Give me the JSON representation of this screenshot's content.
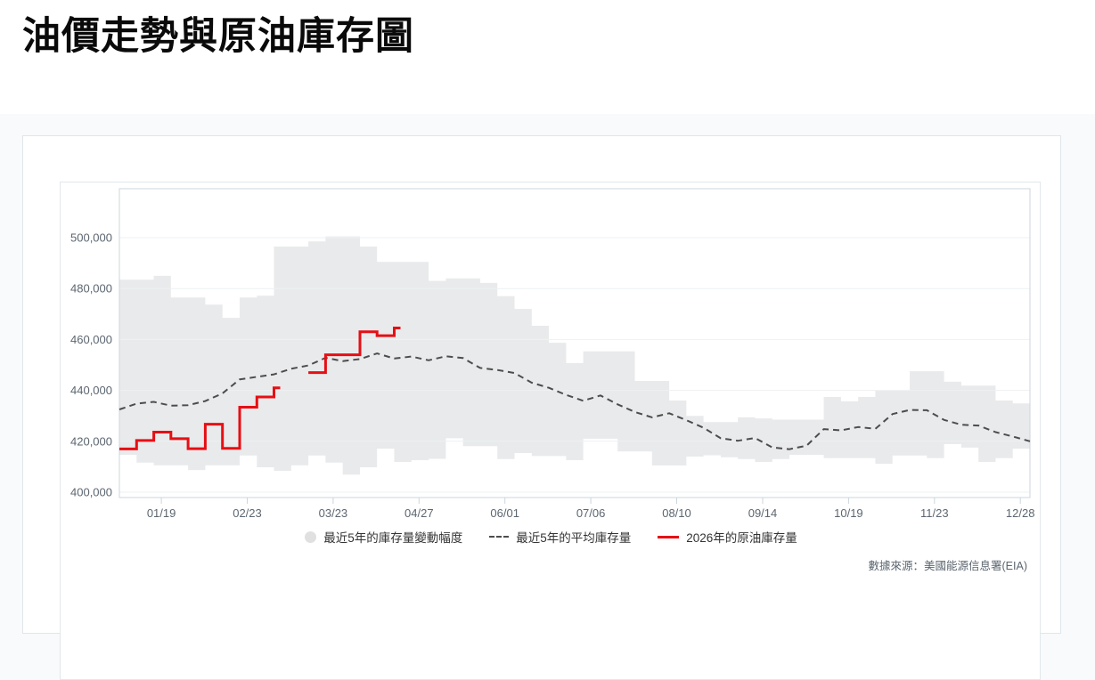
{
  "page": {
    "title": "油價走勢與原油庫存圖",
    "source_note": "數據來源：美國能源信息署(EIA)"
  },
  "legend": [
    {
      "marker": "area",
      "label": "最近5年的庫存量變動幅度",
      "color": "#e0e0e0"
    },
    {
      "marker": "dashed",
      "label": "最近5年的平均庫存量",
      "color": "#4d4d4d"
    },
    {
      "marker": "line",
      "label": "2026年的原油庫存量",
      "color": "#e60f14"
    }
  ],
  "chart_data": {
    "type": "line",
    "title": "油價走勢與原油庫存圖",
    "x_axis": {
      "unit": "week",
      "num_points": 54,
      "tick_labels": [
        "01/19",
        "02/23",
        "03/23",
        "04/27",
        "06/01",
        "07/06",
        "08/10",
        "09/14",
        "10/19",
        "11/23",
        "12/28"
      ],
      "tick_weeks": [
        2.44,
        7.44,
        12.44,
        17.44,
        22.44,
        27.44,
        32.44,
        37.44,
        42.44,
        47.44,
        52.44
      ]
    },
    "y_axis": {
      "min": 397900,
      "max": 519230,
      "tick_values": [
        400000,
        420000,
        440000,
        460000,
        480000,
        500000
      ]
    },
    "grid": {
      "show": true,
      "gridline_color": "#eef1f3",
      "border_color": "#ccd6dd",
      "band_color": "#e9eaeb"
    },
    "series": [
      {
        "name": "最近5年的庫存量變動幅度",
        "type": "band",
        "interpolation": "step",
        "color": "#e9eaeb",
        "upper": [
          483500,
          483500,
          485000,
          476500,
          476500,
          473700,
          468500,
          476500,
          477200,
          496500,
          496500,
          498500,
          500500,
          500500,
          496500,
          490500,
          490500,
          490500,
          483000,
          484000,
          484000,
          482200,
          477000,
          472000,
          465400,
          458700,
          450700,
          455300,
          455300,
          455300,
          443700,
          443700,
          436000,
          430000,
          427500,
          427500,
          429400,
          429000,
          428500,
          428500,
          428500,
          437400,
          435700,
          437400,
          439900,
          440000,
          447500,
          447500,
          443400,
          441900,
          441900,
          436000,
          434900,
          434900
        ],
        "lower": [
          414700,
          411600,
          410600,
          410600,
          408700,
          410600,
          410600,
          414400,
          409800,
          408400,
          410600,
          414400,
          411600,
          406900,
          409800,
          417100,
          411900,
          412600,
          413100,
          421200,
          418100,
          418100,
          413000,
          415400,
          414200,
          414200,
          412600,
          421000,
          421000,
          416000,
          416000,
          410500,
          410500,
          414000,
          414500,
          413700,
          413000,
          411900,
          413000,
          414700,
          414700,
          413400,
          413400,
          413400,
          411200,
          414400,
          414400,
          413400,
          418900,
          417500,
          411900,
          413400,
          417100,
          417100
        ]
      },
      {
        "name": "最近5年的平均庫存量",
        "type": "line",
        "interpolation": "linear",
        "style": "dashed",
        "color": "#4d4d4d",
        "values": [
          432500,
          434800,
          435500,
          434000,
          434200,
          435800,
          438800,
          444300,
          445300,
          446300,
          448500,
          449800,
          452800,
          451500,
          452300,
          454500,
          452500,
          453300,
          451800,
          453400,
          452700,
          448800,
          448000,
          446800,
          443000,
          441000,
          438200,
          435900,
          438000,
          434500,
          431500,
          429400,
          431000,
          428300,
          425300,
          421200,
          420200,
          421300,
          417600,
          416900,
          418300,
          424800,
          424300,
          425600,
          424900,
          430700,
          432300,
          432200,
          428400,
          426500,
          426200,
          423600,
          421900,
          420000
        ]
      },
      {
        "name": "2026年的原油庫存量",
        "type": "line",
        "interpolation": "step",
        "style": "solid",
        "color": "#e60f14",
        "values": [
          417000,
          420300,
          423600,
          421000,
          417100,
          426700,
          417200,
          433400,
          437400,
          441000,
          null,
          447000,
          454000,
          454000,
          463000,
          461500,
          464500
        ]
      }
    ]
  }
}
